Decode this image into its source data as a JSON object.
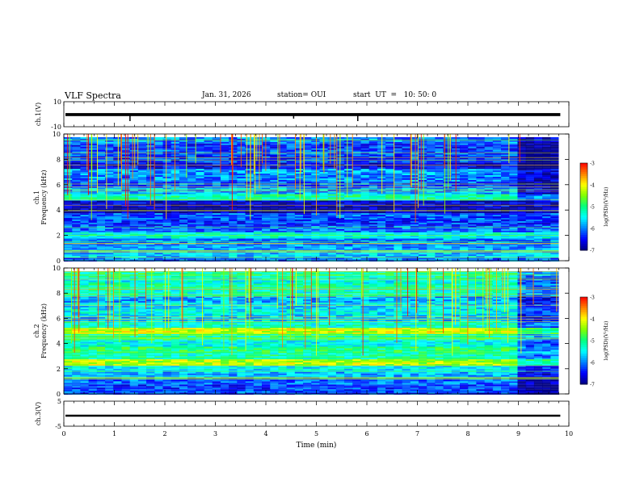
{
  "header": {
    "title": "VLF Spectra",
    "date": "Jan. 31, 2026",
    "station": "station= OUI",
    "start": "start  UT  =   10: 50: 0"
  },
  "colors": {
    "background": "#ffffff",
    "ink": "#000000",
    "colormap": [
      "#000080",
      "#0000ff",
      "#0080ff",
      "#00ffff",
      "#00ff80",
      "#80ff00",
      "#ffff00",
      "#ff8000",
      "#ff0000",
      "#ffffff"
    ]
  },
  "chart_data": [
    {
      "type": "line",
      "panel": "ch1-waveform",
      "ylabel": "ch.1(V)",
      "ylim": [
        -10,
        10
      ],
      "yticks": [
        "10",
        "-10"
      ],
      "x": [
        0,
        1.3,
        1.31,
        4.55,
        5.82,
        10
      ],
      "y": [
        -0.3,
        -0.3,
        -5.5,
        -3.5,
        -5.5,
        -0.3
      ],
      "xlim": [
        0,
        10
      ]
    },
    {
      "type": "heatmap",
      "panel": "ch1-spectrogram",
      "ylabel_line1": "ch.1",
      "ylabel_line2": "Frequency (kHz)",
      "ylim": [
        0,
        10
      ],
      "yticks": [
        "0",
        "2",
        "4",
        "6",
        "8",
        "10"
      ],
      "xlim": [
        0,
        10
      ],
      "data_end_min": 9.8,
      "colorbar_label": "log(PSD)(V²/Hz)",
      "colorbar_ticks": [
        "-3",
        "-4",
        "-5",
        "-6",
        "-7"
      ],
      "colorbar_range": [
        -7,
        -3
      ],
      "bands": [
        {
          "f": 0.1,
          "v": -6.0
        },
        {
          "f": 0.5,
          "v": -5.7
        },
        {
          "f": 1.0,
          "v": -5.9
        },
        {
          "f": 1.5,
          "v": -6.0
        },
        {
          "f": 2.0,
          "v": -5.4
        },
        {
          "f": 2.5,
          "v": -6.1
        },
        {
          "f": 3.0,
          "v": -6.3
        },
        {
          "f": 3.5,
          "v": -6.2
        },
        {
          "f": 4.0,
          "v": -6.9
        },
        {
          "f": 4.5,
          "v": -6.7
        },
        {
          "f": 5.0,
          "v": -5.2
        },
        {
          "f": 5.5,
          "v": -5.8
        },
        {
          "f": 6.0,
          "v": -6.2
        },
        {
          "f": 6.5,
          "v": -6.0
        },
        {
          "f": 7.0,
          "v": -5.9
        },
        {
          "f": 7.5,
          "v": -6.6
        },
        {
          "f": 8.0,
          "v": -6.3
        },
        {
          "f": 8.5,
          "v": -6.2
        },
        {
          "f": 9.0,
          "v": -6.3
        },
        {
          "f": 9.5,
          "v": -6.0
        }
      ]
    },
    {
      "type": "heatmap",
      "panel": "ch2-spectrogram",
      "ylabel_line1": "ch.2",
      "ylabel_line2": "Frequency (kHz)",
      "ylim": [
        0,
        10
      ],
      "yticks": [
        "0",
        "2",
        "4",
        "6",
        "8",
        "10"
      ],
      "xlim": [
        0,
        10
      ],
      "data_end_min": 9.8,
      "colorbar_label": "log(PSD)(V²/Hz)",
      "colorbar_ticks": [
        "-3",
        "-4",
        "-5",
        "-6",
        "-7"
      ],
      "colorbar_range": [
        -7,
        -3
      ],
      "bands": [
        {
          "f": 0.1,
          "v": -6.2
        },
        {
          "f": 0.5,
          "v": -6.3
        },
        {
          "f": 1.0,
          "v": -6.1
        },
        {
          "f": 1.5,
          "v": -5.8
        },
        {
          "f": 2.0,
          "v": -5.5
        },
        {
          "f": 2.5,
          "v": -4.3
        },
        {
          "f": 3.0,
          "v": -5.2
        },
        {
          "f": 3.5,
          "v": -5.0
        },
        {
          "f": 4.0,
          "v": -5.4
        },
        {
          "f": 4.5,
          "v": -5.1
        },
        {
          "f": 5.0,
          "v": -4.2
        },
        {
          "f": 5.5,
          "v": -5.3
        },
        {
          "f": 6.0,
          "v": -5.7
        },
        {
          "f": 6.5,
          "v": -5.5
        },
        {
          "f": 7.0,
          "v": -5.6
        },
        {
          "f": 7.5,
          "v": -5.8
        },
        {
          "f": 8.0,
          "v": -5.3
        },
        {
          "f": 8.5,
          "v": -5.2
        },
        {
          "f": 9.0,
          "v": -5.4
        },
        {
          "f": 9.5,
          "v": -5.1
        }
      ]
    },
    {
      "type": "line",
      "panel": "ch3-waveform",
      "ylabel": "ch.3(V)",
      "ylim": [
        -5,
        5
      ],
      "yticks": [
        "5",
        "-5"
      ],
      "x": [
        0,
        10
      ],
      "y": [
        -0.8,
        -0.8
      ],
      "xlim": [
        0,
        10
      ]
    }
  ],
  "xaxis": {
    "label": "Time (min)",
    "ticks": [
      "0",
      "1",
      "2",
      "3",
      "4",
      "5",
      "6",
      "7",
      "8",
      "9",
      "10"
    ]
  }
}
